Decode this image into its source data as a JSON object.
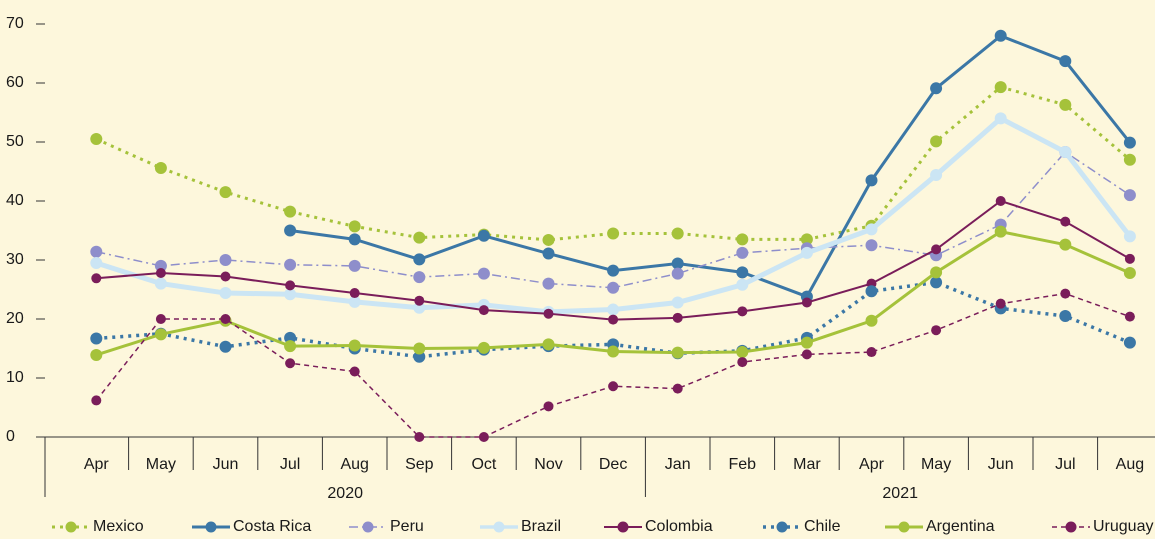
{
  "chart_data": {
    "type": "line",
    "category_groups": [
      {
        "label": "2020",
        "categories": [
          "Apr",
          "May",
          "Jun",
          "Jul",
          "Aug",
          "Sep",
          "Oct",
          "Nov",
          "Dec"
        ]
      },
      {
        "label": "2021",
        "categories": [
          "Jan",
          "Feb",
          "Mar",
          "Apr",
          "May",
          "Jun",
          "Jul",
          "Aug"
        ]
      }
    ],
    "ylim": [
      0,
      70
    ],
    "yticks": [
      0,
      10,
      20,
      30,
      40,
      50,
      60,
      70
    ],
    "grid": false,
    "legend": "bottom",
    "series": [
      {
        "name": "Mexico",
        "color": "#a5c23a",
        "line_style": "dotted",
        "values": [
          50.5,
          45.6,
          41.5,
          38.2,
          35.7,
          33.8,
          34.3,
          33.4,
          34.5,
          34.5,
          33.5,
          33.5,
          35.8,
          50.1,
          59.3,
          56.3,
          47.0
        ]
      },
      {
        "name": "Costa Rica",
        "color": "#3b77a6",
        "line_style": "solid",
        "values": [
          null,
          null,
          null,
          35.0,
          33.5,
          30.1,
          34.1,
          31.1,
          28.2,
          29.4,
          27.9,
          23.8,
          43.5,
          59.1,
          68.0,
          63.7,
          49.9
        ]
      },
      {
        "name": "Peru",
        "color": "#8e8ecb",
        "line_style": "dashdot",
        "values": [
          31.4,
          29.0,
          30.0,
          29.2,
          29.0,
          27.1,
          27.7,
          26.0,
          25.3,
          27.7,
          31.2,
          32.0,
          32.5,
          30.8,
          36.0,
          48.3,
          41.0
        ]
      },
      {
        "name": "Brazil",
        "color": "#cbe5f4",
        "line_style": "solid",
        "values": [
          29.5,
          26.0,
          24.4,
          24.2,
          22.9,
          21.9,
          22.4,
          21.2,
          21.6,
          22.8,
          25.8,
          31.2,
          35.2,
          44.4,
          54.0,
          48.3,
          34.0
        ]
      },
      {
        "name": "Colombia",
        "color": "#7a1d5a",
        "line_style": "solid",
        "values": [
          26.9,
          27.8,
          27.2,
          25.7,
          24.4,
          23.1,
          21.5,
          20.9,
          19.9,
          20.2,
          21.3,
          22.8,
          26.0,
          31.8,
          40.0,
          36.5,
          30.2
        ]
      },
      {
        "name": "Chile",
        "color": "#3b77a6",
        "line_style": "dotted",
        "values": [
          16.7,
          17.5,
          15.3,
          16.8,
          15.0,
          13.6,
          14.8,
          15.4,
          15.7,
          14.2,
          14.6,
          16.8,
          24.7,
          26.2,
          21.8,
          20.5,
          16.0
        ]
      },
      {
        "name": "Argentina",
        "color": "#a5c23a",
        "line_style": "solid",
        "values": [
          13.9,
          17.4,
          19.7,
          15.4,
          15.5,
          15.0,
          15.1,
          15.7,
          14.5,
          14.3,
          14.4,
          16.0,
          19.7,
          27.9,
          34.8,
          32.6,
          27.8
        ]
      },
      {
        "name": "Uruguay",
        "color": "#7a1d5a",
        "line_style": "dashed",
        "values": [
          6.2,
          20.0,
          20.0,
          12.5,
          11.1,
          0,
          0,
          5.2,
          8.6,
          8.2,
          12.7,
          14.0,
          14.4,
          18.1,
          22.6,
          24.3,
          20.4
        ]
      }
    ]
  }
}
